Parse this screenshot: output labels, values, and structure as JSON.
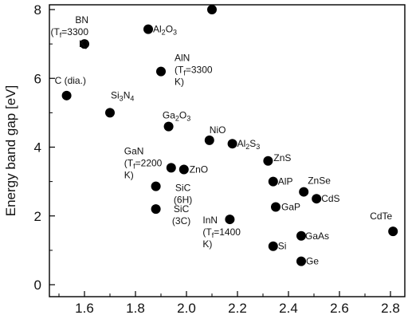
{
  "chart_data": {
    "type": "scatter",
    "title": "",
    "xlabel": "",
    "ylabel": "Energy band gap [eV]",
    "xlim": [
      1.46,
      2.84
    ],
    "ylim": [
      -0.3,
      8.35
    ],
    "x_ticks": [
      "1.6",
      "1.8",
      "2.0",
      "2.2",
      "2.4",
      "2.6",
      "2.8"
    ],
    "y_ticks": [
      "0",
      "2",
      "4",
      "6",
      "8"
    ],
    "grid": false,
    "legend": "none",
    "colors": {
      "marker": "#000000",
      "axis": "#000000",
      "text": "#111111"
    },
    "points": [
      {
        "x": 2.1,
        "y": 8.0,
        "label": []
      },
      {
        "x": 1.6,
        "y": 7.0,
        "label": [
          [
            [
              "BN",
              0
            ]
          ],
          [
            [
              "(T",
              0
            ],
            [
              "f",
              1
            ],
            [
              "=3300",
              0
            ]
          ],
          [
            [
              "K)",
              0
            ]
          ]
        ]
      },
      {
        "x": 1.85,
        "y": 7.43,
        "label": [
          [
            [
              "Al",
              0
            ],
            [
              "2",
              1
            ],
            [
              "O",
              0
            ],
            [
              "3",
              1
            ]
          ]
        ]
      },
      {
        "x": 1.9,
        "y": 6.2,
        "label": [
          [
            [
              "AlN",
              0
            ]
          ],
          [
            [
              "(T",
              0
            ],
            [
              "f",
              1
            ],
            [
              "=3300",
              0
            ]
          ],
          [
            [
              "K)",
              0
            ]
          ]
        ]
      },
      {
        "x": 1.53,
        "y": 5.5,
        "label": [
          [
            [
              "C (dia.)",
              0
            ]
          ]
        ]
      },
      {
        "x": 1.7,
        "y": 5.0,
        "label": [
          [
            [
              "Si",
              0
            ],
            [
              "3",
              1
            ],
            [
              "N",
              0
            ],
            [
              "4",
              1
            ]
          ]
        ]
      },
      {
        "x": 1.93,
        "y": 4.6,
        "label": [
          [
            [
              "Ga",
              0
            ],
            [
              "2",
              1
            ],
            [
              "O",
              0
            ],
            [
              "3",
              1
            ]
          ]
        ]
      },
      {
        "x": 2.09,
        "y": 4.2,
        "label": [
          [
            [
              "NiO",
              0
            ]
          ]
        ]
      },
      {
        "x": 2.18,
        "y": 4.1,
        "label": [
          [
            [
              "Al",
              0
            ],
            [
              "2",
              1
            ],
            [
              "S",
              0
            ],
            [
              "3",
              1
            ]
          ]
        ]
      },
      {
        "x": 1.94,
        "y": 3.4,
        "label": [
          [
            [
              "GaN",
              0
            ]
          ],
          [
            [
              "(T",
              0
            ],
            [
              "f",
              1
            ],
            [
              "=2200",
              0
            ]
          ],
          [
            [
              "K)",
              0
            ]
          ]
        ]
      },
      {
        "x": 1.99,
        "y": 3.35,
        "label": [
          [
            [
              "ZnO",
              0
            ]
          ]
        ]
      },
      {
        "x": 2.32,
        "y": 3.6,
        "label": [
          [
            [
              "ZnS",
              0
            ]
          ]
        ]
      },
      {
        "x": 2.34,
        "y": 3.0,
        "label": [
          [
            [
              "AlP",
              0
            ]
          ]
        ]
      },
      {
        "x": 1.88,
        "y": 2.86,
        "label": [
          [
            [
              "SiC",
              0
            ]
          ],
          [
            [
              "(6H)",
              0
            ]
          ]
        ]
      },
      {
        "x": 2.46,
        "y": 2.7,
        "label": [
          [
            [
              "ZnSe",
              0
            ]
          ]
        ]
      },
      {
        "x": 2.51,
        "y": 2.5,
        "label": [
          [
            [
              "CdS",
              0
            ]
          ]
        ]
      },
      {
        "x": 2.35,
        "y": 2.26,
        "label": [
          [
            [
              "GaP",
              0
            ]
          ]
        ]
      },
      {
        "x": 1.88,
        "y": 2.2,
        "label": [
          [
            [
              "SiC",
              0
            ]
          ],
          [
            [
              "(3C)",
              0
            ]
          ]
        ]
      },
      {
        "x": 2.17,
        "y": 1.9,
        "label": [
          [
            [
              "InN",
              0
            ]
          ],
          [
            [
              "(T",
              0
            ],
            [
              "f",
              1
            ],
            [
              "=1400",
              0
            ]
          ],
          [
            [
              "K)",
              0
            ]
          ]
        ]
      },
      {
        "x": 2.81,
        "y": 1.55,
        "label": [
          [
            [
              "CdTe",
              0
            ]
          ]
        ]
      },
      {
        "x": 2.45,
        "y": 1.42,
        "label": [
          [
            [
              "GaAs",
              0
            ]
          ]
        ]
      },
      {
        "x": 2.34,
        "y": 1.12,
        "label": [
          [
            [
              "Si",
              0
            ]
          ]
        ]
      },
      {
        "x": 2.45,
        "y": 0.68,
        "label": [
          [
            [
              "Ge",
              0
            ]
          ]
        ]
      }
    ]
  }
}
